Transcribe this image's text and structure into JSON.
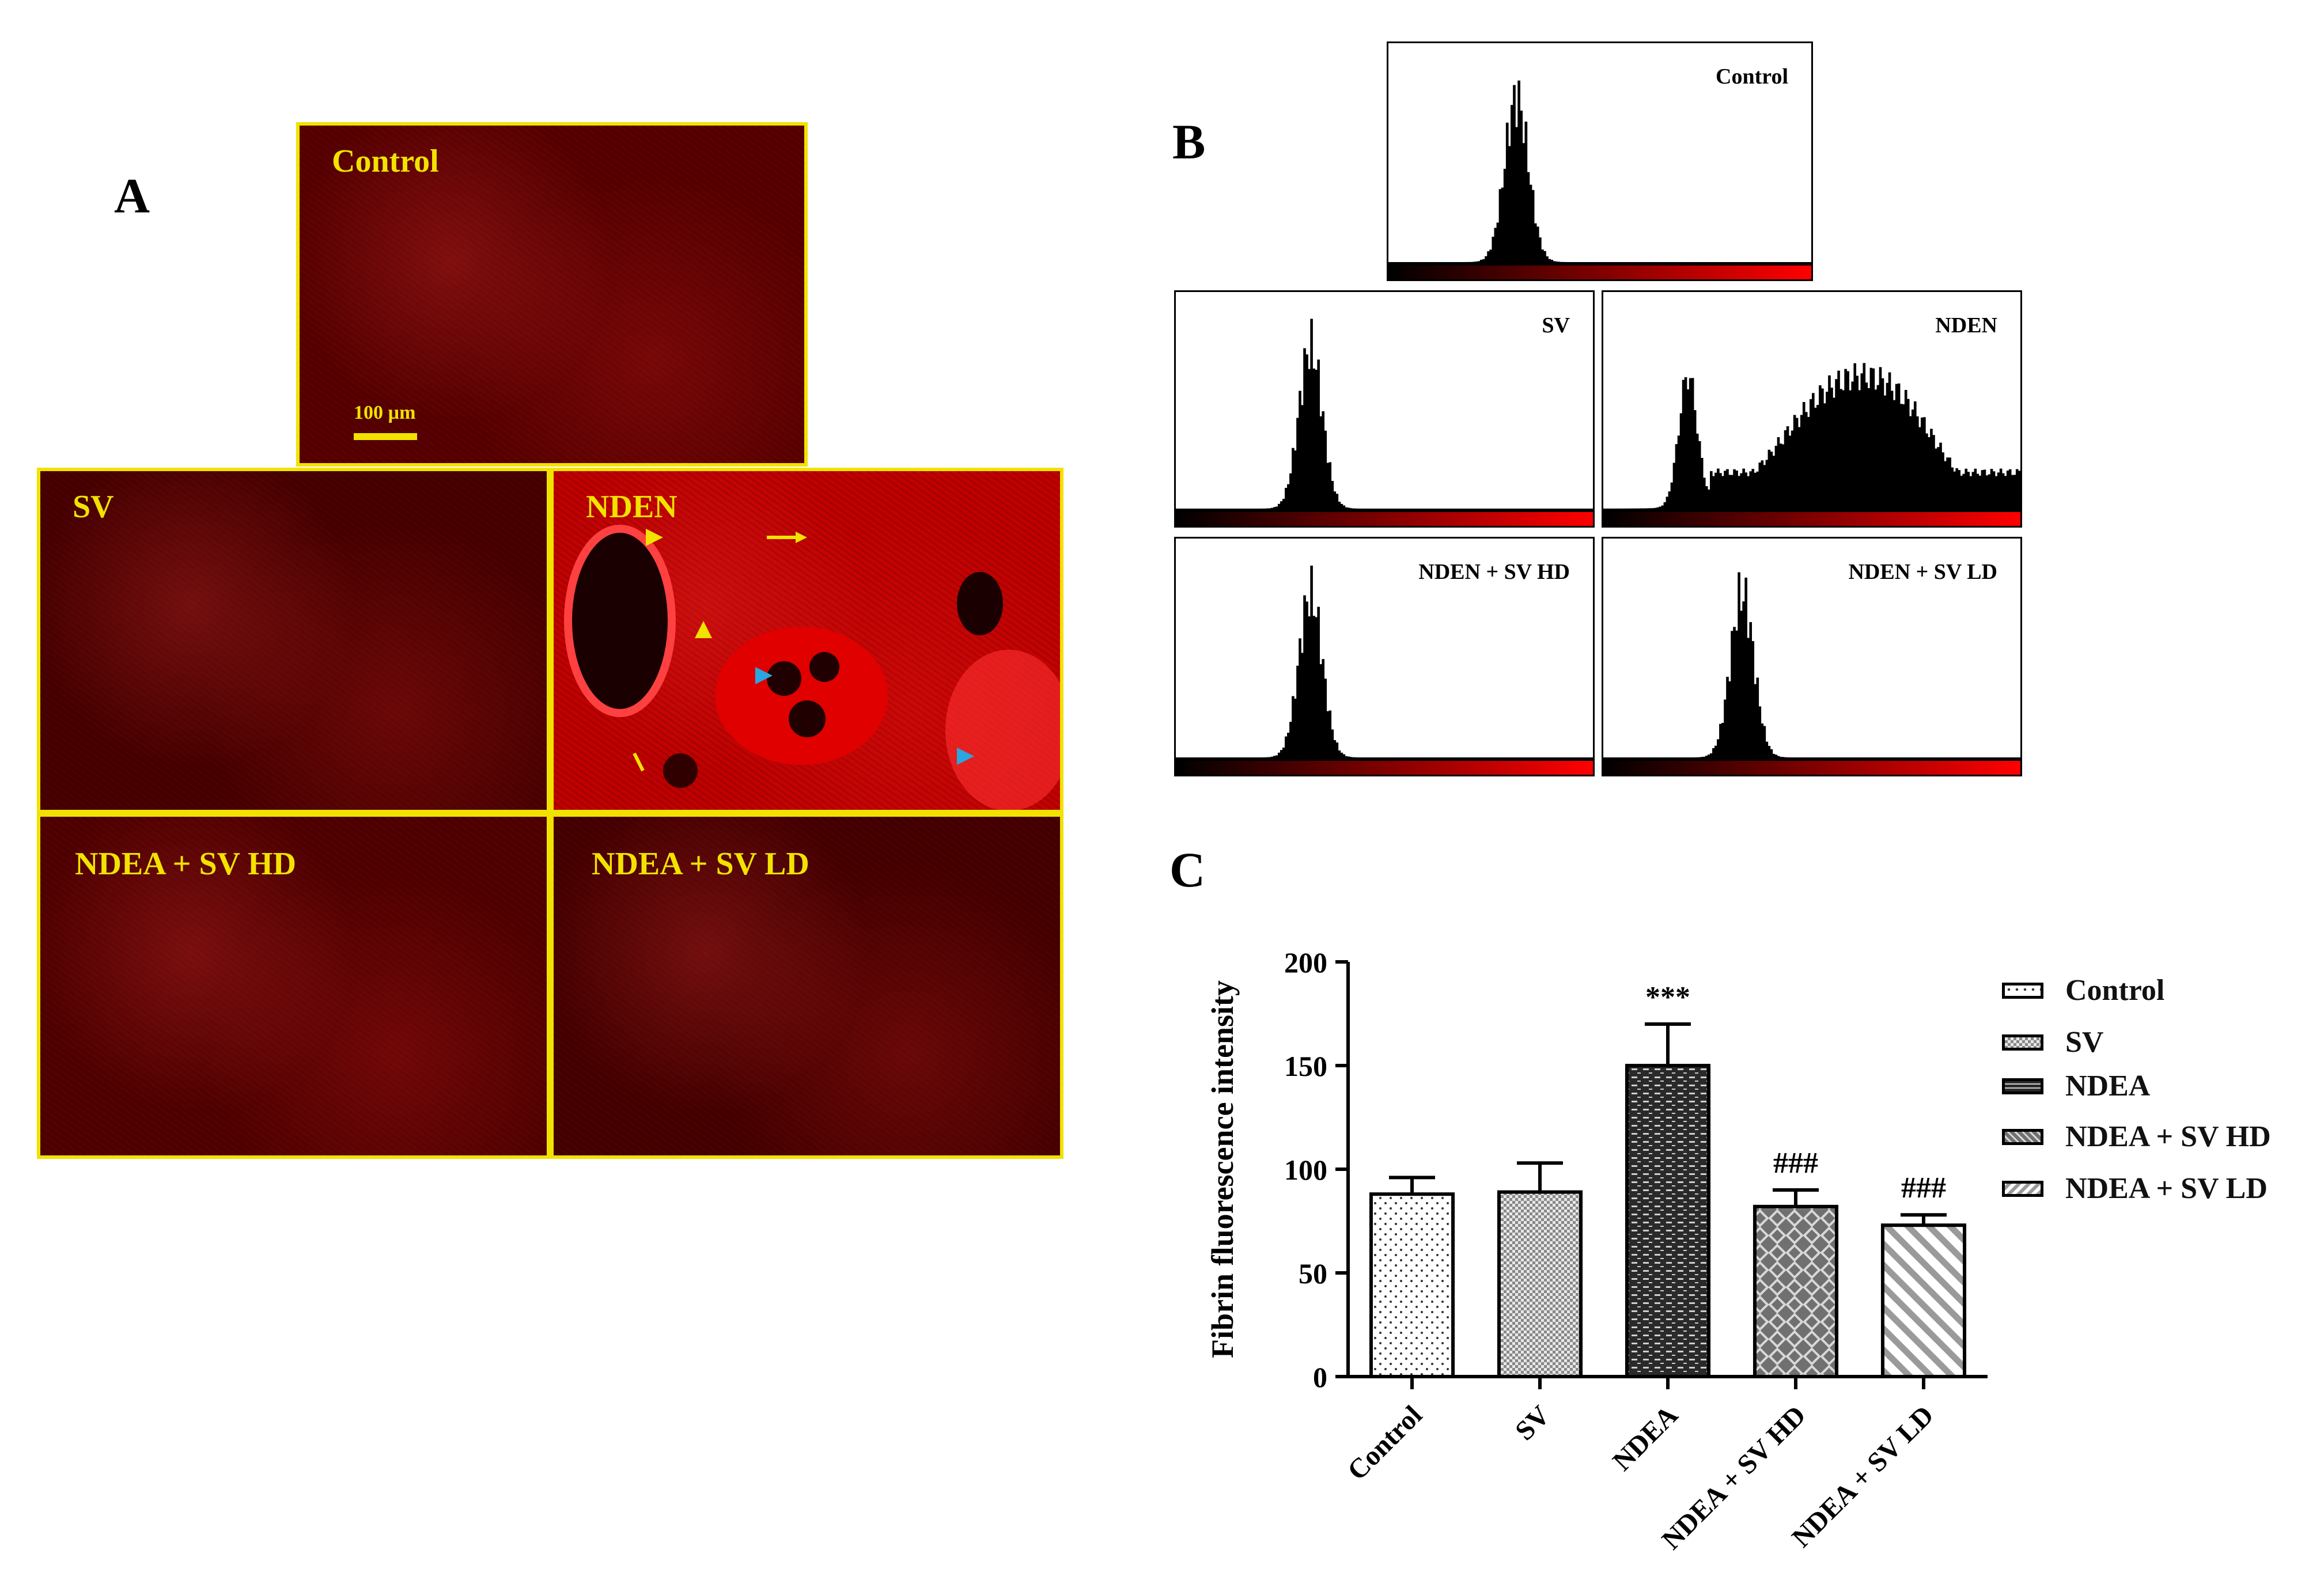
{
  "panels": {
    "a": "A",
    "b": "B",
    "c": "C"
  },
  "micrographs": [
    {
      "label": "Control",
      "bg": "#5a0000",
      "scale": "100 µm"
    },
    {
      "label": "SV",
      "bg": "#4a0000"
    },
    {
      "label": "NDEN",
      "bg": "#c00000"
    },
    {
      "label": "NDEA + SV HD",
      "bg": "#520000"
    },
    {
      "label": "NDEA + SV LD",
      "bg": "#480000"
    }
  ],
  "histograms": [
    {
      "label": "Control",
      "shape": "single-peak",
      "peak": 0.3
    },
    {
      "label": "SV",
      "shape": "single-peak",
      "peak": 0.32
    },
    {
      "label": "NDEN",
      "shape": "bimodal"
    },
    {
      "label": "NDEN + SV HD",
      "shape": "single-peak",
      "peak": 0.32
    },
    {
      "label": "NDEN + SV LD",
      "shape": "single-peak",
      "peak": 0.33
    }
  ],
  "chart_data": {
    "type": "bar",
    "ylabel": "Fibrin fluorescence intensity",
    "ylim": [
      0,
      200
    ],
    "yticks": [
      0,
      50,
      100,
      150,
      200
    ],
    "categories": [
      "Control",
      "SV",
      "NDEA",
      "NDEA + SV HD",
      "NDEA + SV LD"
    ],
    "values": [
      88,
      89,
      150,
      82,
      73
    ],
    "errors": [
      8,
      14,
      20,
      8,
      5
    ],
    "annotations": [
      "",
      "",
      "***",
      "###",
      "###"
    ],
    "patterns": [
      "dots",
      "fine-check",
      "dark-dash",
      "grey-diamond",
      "diagonal"
    ],
    "legend": [
      "Control",
      "SV",
      "NDEA",
      "NDEA + SV HD",
      "NDEA + SV LD"
    ],
    "legend_position": "right"
  }
}
